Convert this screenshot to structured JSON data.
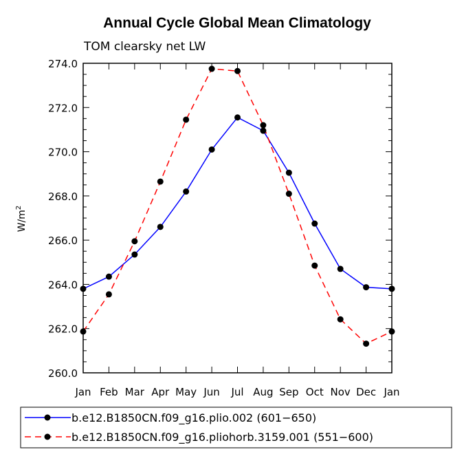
{
  "chart_data": {
    "type": "line",
    "title": "Annual Cycle Global Mean Climatology",
    "subtitle": "TOM clearsky net LW",
    "ylabel_base": "W/m",
    "ylabel_sup": "2",
    "categories": [
      "Jan",
      "Feb",
      "Mar",
      "Apr",
      "May",
      "Jun",
      "Jul",
      "Aug",
      "Sep",
      "Oct",
      "Nov",
      "Dec",
      "Jan"
    ],
    "ylim": [
      260.0,
      274.0
    ],
    "ytick_labels": [
      "260.0",
      "262.0",
      "264.0",
      "266.0",
      "268.0",
      "270.0",
      "272.0",
      "274.0"
    ],
    "grid": false,
    "legend_position": "bottom",
    "series": [
      {
        "name": "b.e12.B1850CN.f09_g16.plio.002 (601−650)",
        "color": "#0000ff",
        "dash": "solid",
        "values": [
          263.8,
          264.35,
          265.35,
          266.6,
          268.2,
          270.1,
          271.55,
          270.95,
          269.05,
          266.75,
          264.7,
          263.87,
          263.8
        ]
      },
      {
        "name": "b.e12.B1850CN.f09_g16.pliohorb.3159.001 (551−600)",
        "color": "#ff0000",
        "dash": "dashed",
        "values": [
          261.87,
          263.55,
          265.95,
          268.65,
          271.45,
          273.75,
          273.65,
          271.2,
          268.1,
          264.85,
          262.42,
          261.32,
          261.87
        ]
      }
    ]
  }
}
